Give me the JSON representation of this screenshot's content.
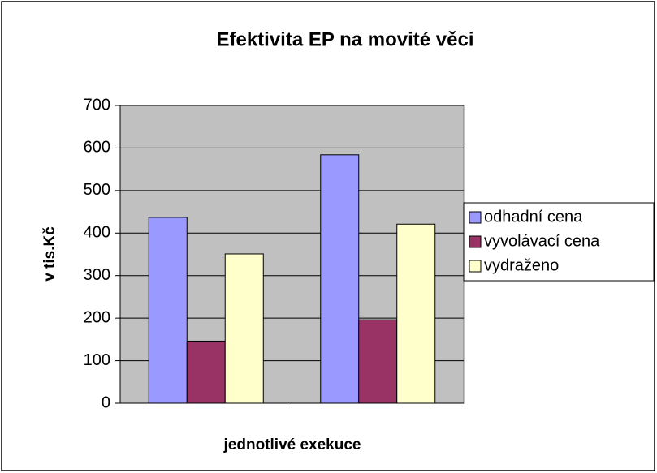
{
  "chart_data": {
    "type": "bar",
    "title": "Efektivita EP na movité věci",
    "y_label": "v tis.Kč",
    "x_label": "jednotlivé exekuce",
    "categories": [
      null,
      null
    ],
    "series": [
      {
        "name": "odhadní cena",
        "color": "#9999ff",
        "values": [
          437,
          584
        ]
      },
      {
        "name": "vyvolávací cena",
        "color": "#993366",
        "values": [
          146,
          196
        ]
      },
      {
        "name": "vydraženo",
        "color": "#ffffcc",
        "values": [
          351,
          421
        ]
      }
    ],
    "ylim": [
      0,
      700
    ],
    "yticks": [
      0,
      100,
      200,
      300,
      400,
      500,
      600,
      700
    ],
    "grid": true,
    "legend": "right",
    "plot_background": "#c0c0c0"
  }
}
